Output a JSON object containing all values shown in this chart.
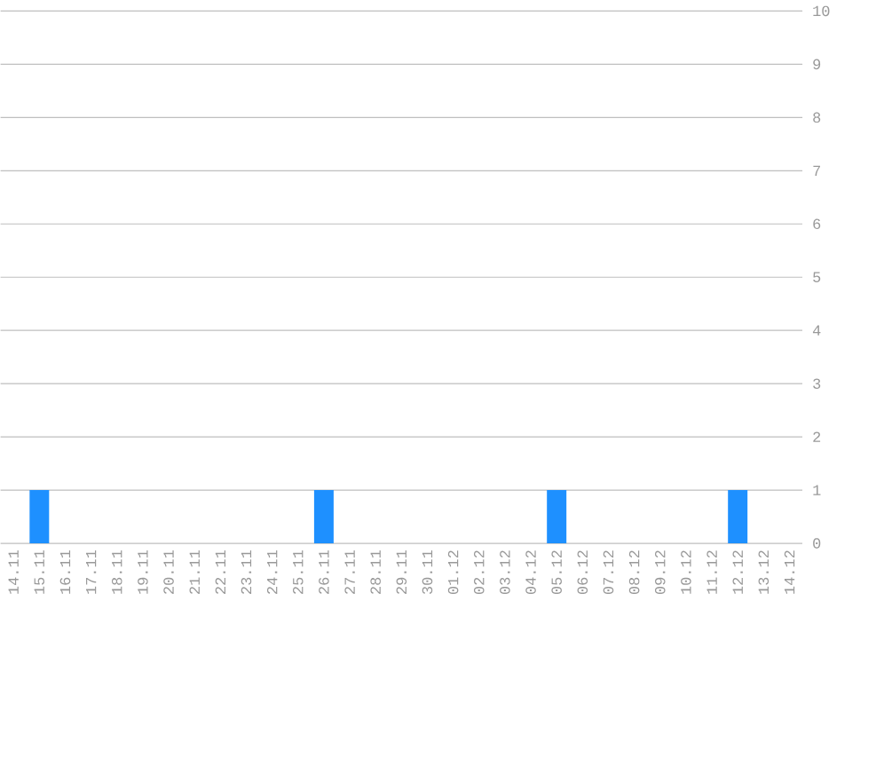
{
  "chart_data": {
    "type": "bar",
    "categories": [
      "14.11",
      "15.11",
      "16.11",
      "17.11",
      "18.11",
      "19.11",
      "20.11",
      "21.11",
      "22.11",
      "23.11",
      "24.11",
      "25.11",
      "26.11",
      "27.11",
      "28.11",
      "29.11",
      "30.11",
      "01.12",
      "02.12",
      "03.12",
      "04.12",
      "05.12",
      "06.12",
      "07.12",
      "08.12",
      "09.12",
      "10.12",
      "11.12",
      "12.12",
      "13.12",
      "14.12"
    ],
    "values": [
      0,
      1,
      0,
      0,
      0,
      0,
      0,
      0,
      0,
      0,
      0,
      0,
      1,
      0,
      0,
      0,
      0,
      0,
      0,
      0,
      0,
      1,
      0,
      0,
      0,
      0,
      0,
      0,
      1,
      0,
      0
    ],
    "color": "#1e90ff",
    "ylim": [
      0,
      10
    ],
    "yticks": [
      0,
      1,
      2,
      3,
      4,
      5,
      6,
      7,
      8,
      9,
      10
    ],
    "grid": "y"
  }
}
